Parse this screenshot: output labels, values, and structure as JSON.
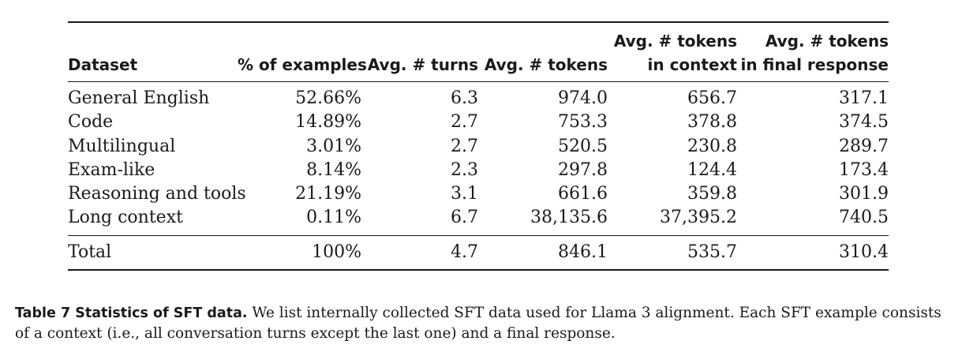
{
  "table": {
    "columns": [
      {
        "line1": "",
        "line2": "Dataset"
      },
      {
        "line1": "",
        "line2": "% of examples"
      },
      {
        "line1": "",
        "line2": "Avg. # turns"
      },
      {
        "line1": "",
        "line2": "Avg. # tokens"
      },
      {
        "line1": "Avg. # tokens",
        "line2": "in context"
      },
      {
        "line1": "Avg. # tokens",
        "line2": "in final response"
      }
    ],
    "rows": [
      [
        "General English",
        "52.66%",
        "6.3",
        "974.0",
        "656.7",
        "317.1"
      ],
      [
        "Code",
        "14.89%",
        "2.7",
        "753.3",
        "378.8",
        "374.5"
      ],
      [
        "Multilingual",
        "3.01%",
        "2.7",
        "520.5",
        "230.8",
        "289.7"
      ],
      [
        "Exam-like",
        "8.14%",
        "2.3",
        "297.8",
        "124.4",
        "173.4"
      ],
      [
        "Reasoning and tools",
        "21.19%",
        "3.1",
        "661.6",
        "359.8",
        "301.9"
      ],
      [
        "Long context",
        "0.11%",
        "6.7",
        "38,135.6",
        "37,395.2",
        "740.5"
      ]
    ],
    "total": [
      "Total",
      "100%",
      "4.7",
      "846.1",
      "535.7",
      "310.4"
    ]
  },
  "caption": {
    "label": "Table 7  Statistics of SFT data.",
    "text": " We list internally collected SFT data used for Llama 3 alignment. Each SFT example consists of a context (i.e., all conversation turns except the last one) and a final response."
  }
}
